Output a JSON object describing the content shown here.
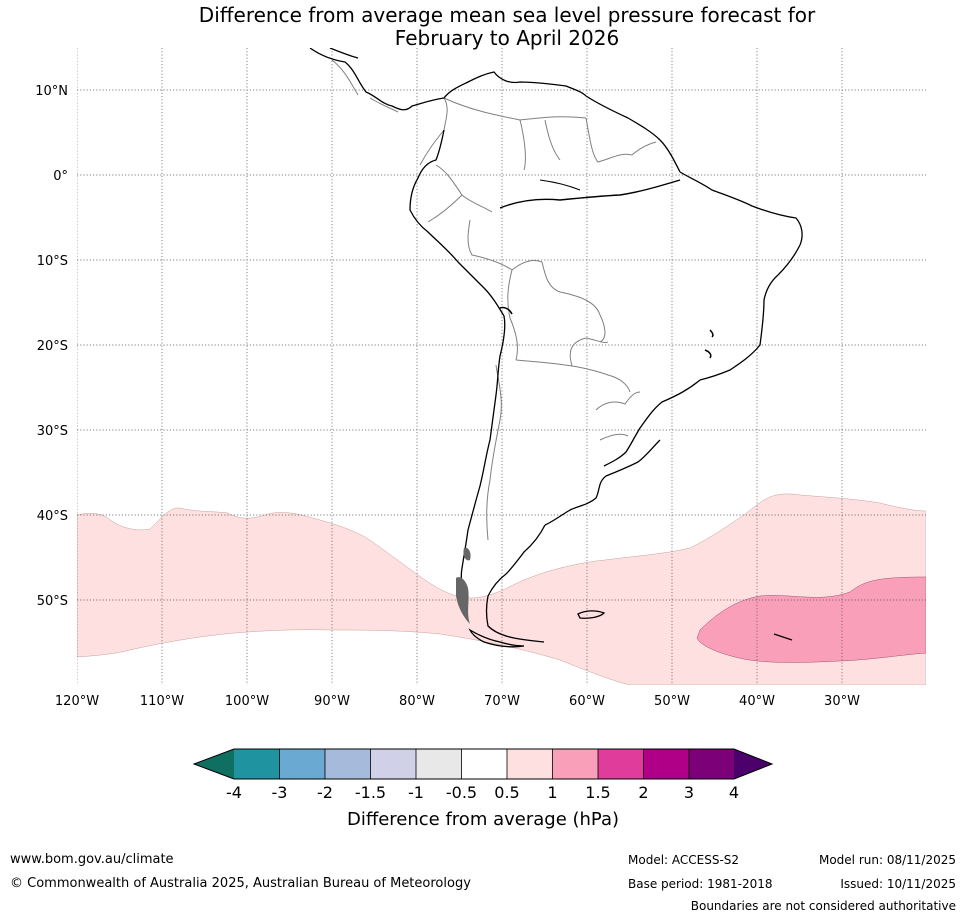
{
  "title": {
    "line1": "Difference from average mean sea level pressure forecast for",
    "line2": "February to April 2026"
  },
  "axes": {
    "lat_labels": [
      "10°N",
      "0°",
      "10°S",
      "20°S",
      "30°S",
      "40°S",
      "50°S"
    ],
    "lon_labels": [
      "120°W",
      "110°W",
      "100°W",
      "90°W",
      "80°W",
      "70°W",
      "60°W",
      "50°W",
      "40°W",
      "30°W"
    ]
  },
  "colorbar": {
    "colors": [
      "#0f6f60",
      "#2093a0",
      "#6aaad2",
      "#a6bbdc",
      "#d0d1e8",
      "#e8e8e8",
      "#ffffff",
      "#fde0df",
      "#f99fba",
      "#e03c9b",
      "#af0087",
      "#7c0078",
      "#4b006c"
    ],
    "ticks": [
      "-4",
      "-3",
      "-2",
      "-1.5",
      "-1",
      "-0.5",
      "0.5",
      "1",
      "1.5",
      "2",
      "3",
      "4"
    ],
    "label": "Difference from average (hPa)"
  },
  "footer": {
    "website": "www.bom.gov.au/climate",
    "copyright": "© Commonwealth of Australia 2025, Australian Bureau of Meteorology",
    "model": "Model: ACCESS-S2",
    "base_period": "Base period: 1981-2018",
    "model_run": "Model run: 08/11/2025",
    "issued": "Issued: 10/11/2025",
    "disclaimer": "Boundaries are not considered authoritative"
  },
  "colors": {
    "anomaly_1": "#fde0df",
    "anomaly_1_5": "#f99fba",
    "coast": "#000000",
    "border": "#808080",
    "grid": "#555555"
  }
}
